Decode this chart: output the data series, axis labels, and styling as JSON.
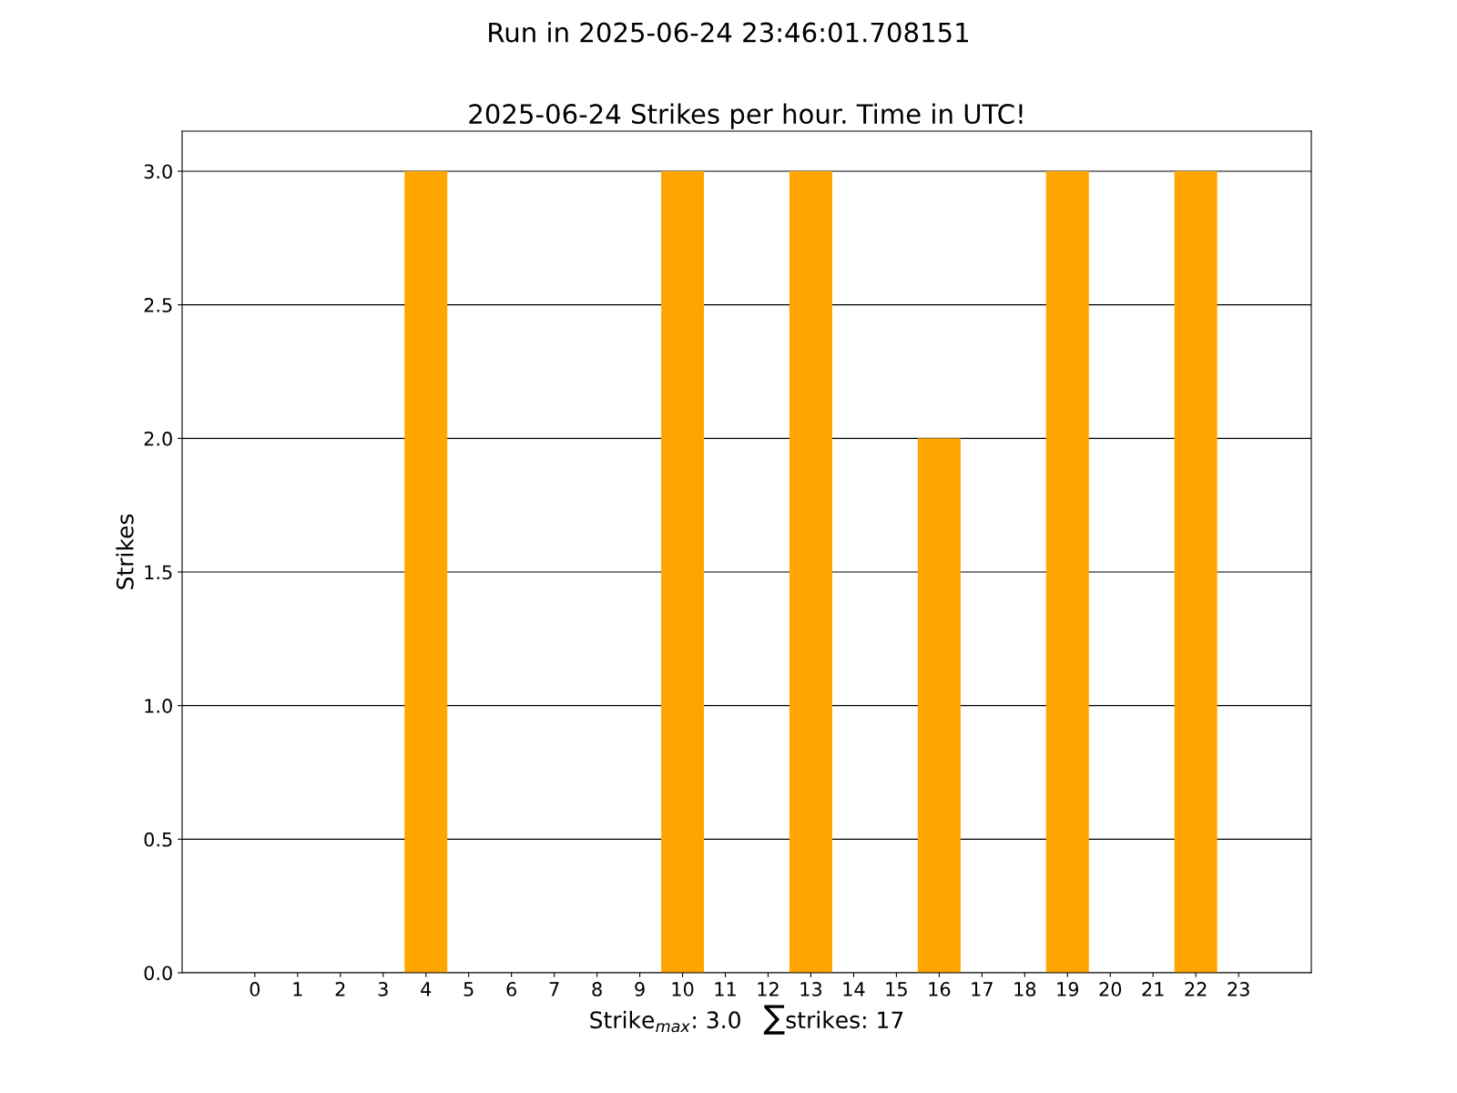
{
  "chart_data": {
    "type": "bar",
    "title": "Run in 2025-06-24 23:46:01.708151",
    "subtitle": "2025-06-24 Strikes per hour. Time in UTC!",
    "xlabel": "Strike$_{max}$: 3.0   ∑strikes: 17",
    "ylabel": "Strikes",
    "categories": [
      "0",
      "1",
      "2",
      "3",
      "4",
      "5",
      "6",
      "7",
      "8",
      "9",
      "10",
      "11",
      "12",
      "13",
      "14",
      "15",
      "16",
      "17",
      "18",
      "19",
      "20",
      "21",
      "22",
      "23"
    ],
    "values": [
      0,
      0,
      0,
      0,
      3,
      0,
      0,
      0,
      0,
      0,
      3,
      0,
      0,
      3,
      0,
      0,
      2,
      0,
      0,
      3,
      0,
      0,
      3,
      0
    ],
    "color": "#ffa500",
    "ylim": [
      0,
      3.15
    ],
    "yticks": [
      {
        "value": 0,
        "label": "0.0"
      },
      {
        "value": 0.5,
        "label": "0.5"
      },
      {
        "value": 1,
        "label": "1.0"
      },
      {
        "value": 1.5,
        "label": "1.5"
      },
      {
        "value": 2,
        "label": "2.0"
      },
      {
        "value": 2.5,
        "label": "2.5"
      },
      {
        "value": 3,
        "label": "3.0"
      }
    ],
    "grid": "y"
  }
}
